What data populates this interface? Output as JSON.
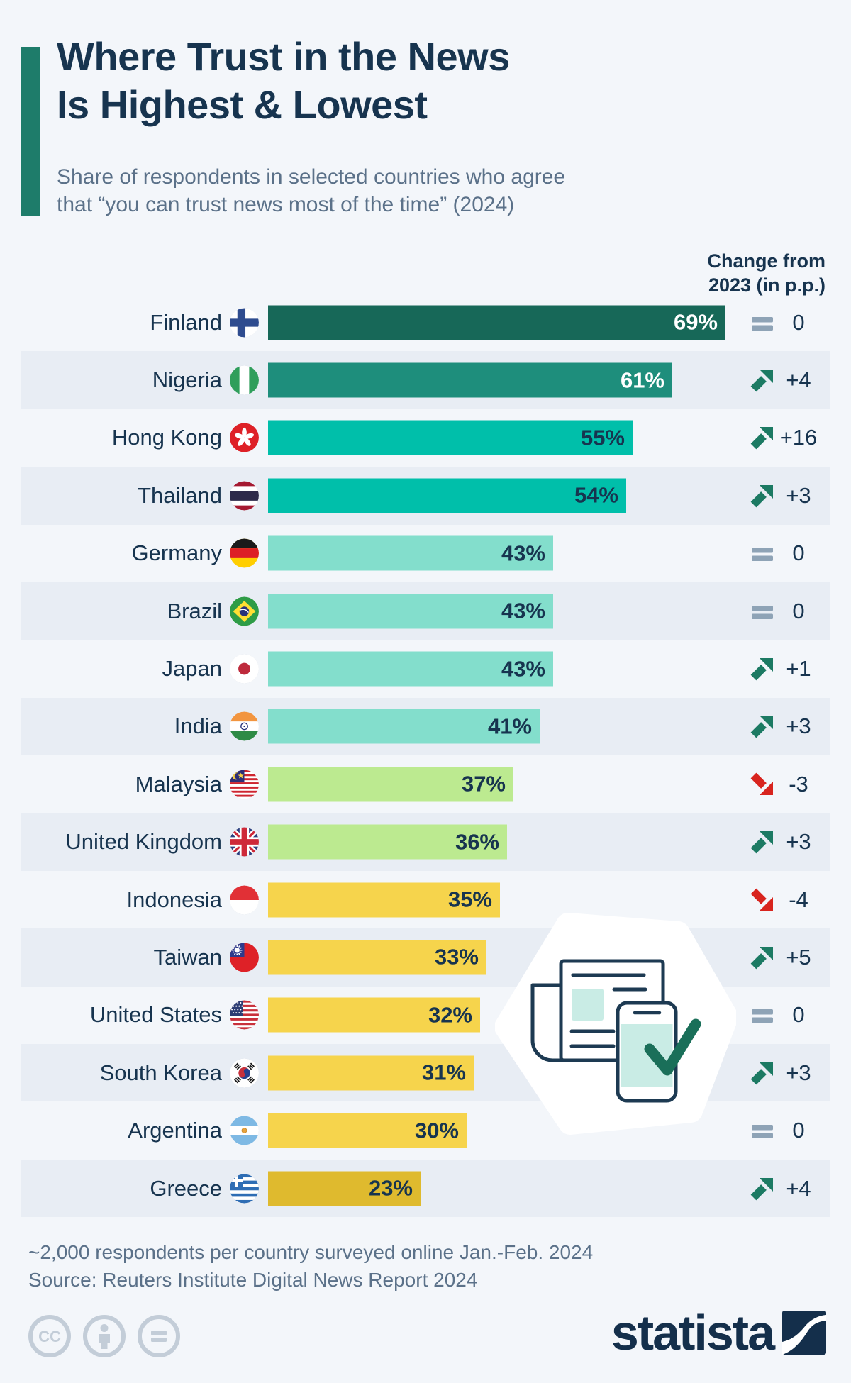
{
  "header": {
    "accent_color": "#1E7C6A",
    "title_lines": [
      "Where Trust in the News",
      "Is Highest & Lowest"
    ],
    "subtitle_lines": [
      "Share of respondents in selected countries who agree",
      "that “you can trust news most of the time” (2024)"
    ],
    "change_header_lines": [
      "Change from",
      "2023 (in p.p.)"
    ]
  },
  "chart_data": {
    "type": "bar",
    "orientation": "horizontal",
    "unit": "%",
    "title": "Where Trust in the News Is Highest & Lowest",
    "categories": [
      "Finland",
      "Nigeria",
      "Hong Kong",
      "Thailand",
      "Germany",
      "Brazil",
      "Japan",
      "India",
      "Malaysia",
      "United Kingdom",
      "Indonesia",
      "Taiwan",
      "United States",
      "South Korea",
      "Argentina",
      "Greece"
    ],
    "values": [
      69,
      61,
      55,
      54,
      43,
      43,
      43,
      41,
      37,
      36,
      35,
      33,
      32,
      31,
      30,
      23
    ],
    "changes_from_2023_pp": [
      0,
      4,
      16,
      3,
      0,
      0,
      1,
      3,
      -3,
      3,
      -4,
      5,
      0,
      3,
      0,
      4
    ],
    "change_labels": [
      "0",
      "+4",
      "+16",
      "+3",
      "0",
      "0",
      "+1",
      "+3",
      "-3",
      "+3",
      "-4",
      "+5",
      "0",
      "+3",
      "0",
      "+4"
    ],
    "trends": [
      "equal",
      "up",
      "up",
      "up",
      "equal",
      "equal",
      "up",
      "up",
      "down",
      "up",
      "down",
      "up",
      "equal",
      "up",
      "equal",
      "up"
    ],
    "bar_colors": [
      "#176858",
      "#1E8E7C",
      "#00BFAA",
      "#00BFAA",
      "#83DECC",
      "#83DECC",
      "#83DECC",
      "#83DECC",
      "#BCEA90",
      "#BCEA90",
      "#F6D44C",
      "#F6D44C",
      "#F6D44C",
      "#F6D44C",
      "#F6D44C",
      "#DFBA2E"
    ],
    "flags": [
      "fi",
      "ng",
      "hk",
      "th",
      "de",
      "br",
      "jp",
      "in",
      "my",
      "gb",
      "id",
      "tw",
      "us",
      "kr",
      "ar",
      "gr"
    ],
    "xlim": [
      0,
      69
    ],
    "trend_colors": {
      "up": "#1C7A63",
      "down": "#D8241E",
      "equal": "#8EA3B6"
    },
    "grid": false,
    "value_label_dark": "#17344F",
    "value_label_light": "#FFFFFF"
  },
  "footer": {
    "note": "~2,000 respondents per country surveyed online Jan.-Feb. 2024",
    "source": "Source: Reuters Institute Digital News Report 2024"
  },
  "branding": {
    "logo_text": "statista",
    "logo_color": "#142F4B",
    "license_icons": [
      "cc-icon",
      "attribution-person-icon",
      "equals-license-icon"
    ]
  }
}
